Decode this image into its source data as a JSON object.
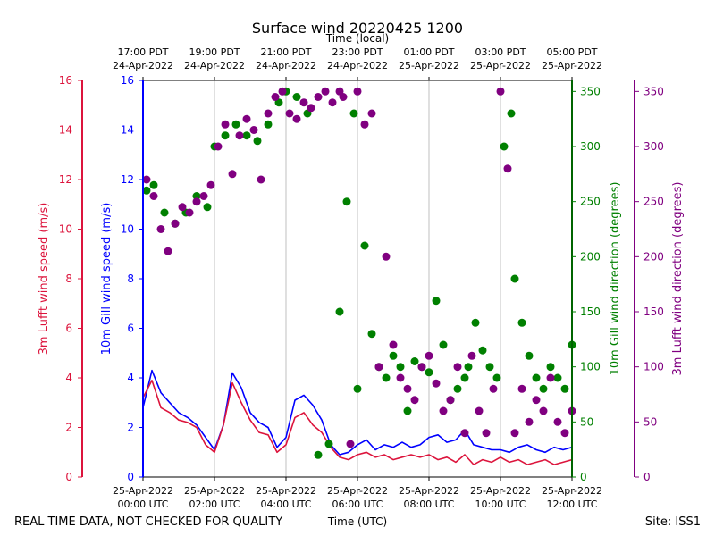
{
  "chart_data": {
    "type": "scatter",
    "title": "Surface wind 20220425 1200",
    "top_axis_label": "Time (local)",
    "top_ticks": [
      {
        "hour": 0,
        "line1": "17:00 PDT",
        "line2": "24-Apr-2022"
      },
      {
        "hour": 2,
        "line1": "19:00 PDT",
        "line2": "24-Apr-2022"
      },
      {
        "hour": 4,
        "line1": "21:00 PDT",
        "line2": "24-Apr-2022"
      },
      {
        "hour": 6,
        "line1": "23:00 PDT",
        "line2": "24-Apr-2022"
      },
      {
        "hour": 8,
        "line1": "01:00 PDT",
        "line2": "25-Apr-2022"
      },
      {
        "hour": 10,
        "line1": "03:00 PDT",
        "line2": "25-Apr-2022"
      },
      {
        "hour": 12,
        "line1": "05:00 PDT",
        "line2": "25-Apr-2022"
      }
    ],
    "bottom_ticks": [
      {
        "hour": 0,
        "line1": "25-Apr-2022",
        "line2": "00:00 UTC"
      },
      {
        "hour": 2,
        "line1": "25-Apr-2022",
        "line2": "02:00 UTC"
      },
      {
        "hour": 4,
        "line1": "25-Apr-2022",
        "line2": "04:00 UTC"
      },
      {
        "hour": 6,
        "line1": "25-Apr-2022",
        "line2": "06:00 UTC"
      },
      {
        "hour": 8,
        "line1": "25-Apr-2022",
        "line2": "08:00 UTC"
      },
      {
        "hour": 10,
        "line1": "25-Apr-2022",
        "line2": "10:00 UTC"
      },
      {
        "hour": 12,
        "line1": "25-Apr-2022",
        "line2": "12:00 UTC"
      }
    ],
    "xlabel": "Time (UTC)",
    "xlim": [
      0,
      12
    ],
    "axes": {
      "lufft_speed": {
        "label": "3m Lufft wind speed (m/s)",
        "color": "#dc143c",
        "ylim": [
          0,
          16
        ],
        "ticks": [
          "0",
          "2",
          "4",
          "6",
          "8",
          "10",
          "12",
          "14",
          "16"
        ]
      },
      "gill_speed": {
        "label": "10m Gill wind speed (m/s)",
        "color": "#0000ff",
        "ylim": [
          0,
          16
        ],
        "ticks": [
          "0",
          "2",
          "4",
          "6",
          "8",
          "10",
          "12",
          "14",
          "16"
        ]
      },
      "gill_dir": {
        "label": "10m Gill wind direction (degrees)",
        "color": "#008000",
        "ylim": [
          0,
          360
        ],
        "ticks": [
          "0",
          "50",
          "100",
          "150",
          "200",
          "250",
          "300",
          "350"
        ]
      },
      "lufft_dir": {
        "label": "3m Lufft wind direction (degrees)",
        "color": "#800080",
        "ylim": [
          0,
          360
        ],
        "ticks": [
          "0",
          "50",
          "100",
          "150",
          "200",
          "250",
          "300",
          "350"
        ]
      }
    },
    "series": [
      {
        "name": "10m Gill wind speed",
        "kind": "line",
        "axis": "gill_speed",
        "color": "#0000ff",
        "x": [
          0,
          0.25,
          0.5,
          0.75,
          1.0,
          1.25,
          1.5,
          1.75,
          2.0,
          2.25,
          2.5,
          2.75,
          3.0,
          3.25,
          3.5,
          3.75,
          4.0,
          4.25,
          4.5,
          4.75,
          5.0,
          5.25,
          5.5,
          5.75,
          6.0,
          6.25,
          6.5,
          6.75,
          7.0,
          7.25,
          7.5,
          7.75,
          8.0,
          8.25,
          8.5,
          8.75,
          9.0,
          9.25,
          9.5,
          9.75,
          10.0,
          10.25,
          10.5,
          10.75,
          11.0,
          11.25,
          11.5,
          11.75,
          12.0
        ],
        "y": [
          2.8,
          4.3,
          3.4,
          3.0,
          2.6,
          2.4,
          2.1,
          1.6,
          1.1,
          2.1,
          4.2,
          3.6,
          2.6,
          2.2,
          2.0,
          1.2,
          1.6,
          3.1,
          3.3,
          2.9,
          2.3,
          1.3,
          0.9,
          1.0,
          1.3,
          1.5,
          1.1,
          1.3,
          1.2,
          1.4,
          1.2,
          1.3,
          1.6,
          1.7,
          1.4,
          1.5,
          1.9,
          1.3,
          1.2,
          1.1,
          1.1,
          1.0,
          1.2,
          1.3,
          1.1,
          1.0,
          1.2,
          1.1,
          1.2
        ]
      },
      {
        "name": "3m Lufft wind speed",
        "kind": "line",
        "axis": "lufft_speed",
        "color": "#dc143c",
        "x": [
          0,
          0.25,
          0.5,
          0.75,
          1.0,
          1.25,
          1.5,
          1.75,
          2.0,
          2.25,
          2.5,
          2.75,
          3.0,
          3.25,
          3.5,
          3.75,
          4.0,
          4.25,
          4.5,
          4.75,
          5.0,
          5.25,
          5.5,
          5.75,
          6.0,
          6.25,
          6.5,
          6.75,
          7.0,
          7.25,
          7.5,
          7.75,
          8.0,
          8.25,
          8.5,
          8.75,
          9.0,
          9.25,
          9.5,
          9.75,
          10.0,
          10.25,
          10.5,
          10.75,
          11.0,
          11.25,
          11.5,
          11.75,
          12.0
        ],
        "y": [
          3.2,
          3.9,
          2.8,
          2.6,
          2.3,
          2.2,
          2.0,
          1.3,
          1.0,
          2.1,
          3.8,
          3.0,
          2.3,
          1.8,
          1.7,
          1.0,
          1.3,
          2.4,
          2.6,
          2.1,
          1.8,
          1.2,
          0.8,
          0.7,
          0.9,
          1.0,
          0.8,
          0.9,
          0.7,
          0.8,
          0.9,
          0.8,
          0.9,
          0.7,
          0.8,
          0.6,
          0.9,
          0.5,
          0.7,
          0.6,
          0.8,
          0.6,
          0.7,
          0.5,
          0.6,
          0.7,
          0.5,
          0.6,
          0.7
        ]
      },
      {
        "name": "10m Gill wind direction",
        "kind": "scatter",
        "axis": "gill_dir",
        "color": "#008000",
        "x": [
          0.1,
          0.3,
          0.6,
          0.9,
          1.2,
          1.5,
          1.8,
          2.0,
          2.3,
          2.6,
          2.9,
          3.2,
          3.5,
          3.8,
          4.0,
          4.3,
          4.6,
          4.9,
          5.2,
          5.5,
          5.7,
          5.9,
          6.0,
          6.2,
          6.4,
          6.6,
          6.8,
          7.0,
          7.2,
          7.4,
          7.6,
          7.8,
          8.0,
          8.2,
          8.4,
          8.6,
          8.8,
          9.0,
          9.1,
          9.3,
          9.5,
          9.7,
          9.9,
          10.1,
          10.3,
          10.4,
          10.6,
          10.8,
          11.0,
          11.2,
          11.4,
          11.6,
          11.8,
          12.0
        ],
        "y": [
          260,
          265,
          240,
          230,
          240,
          255,
          245,
          300,
          310,
          320,
          310,
          305,
          320,
          340,
          350,
          345,
          330,
          20,
          30,
          150,
          250,
          330,
          80,
          210,
          130,
          100,
          90,
          110,
          100,
          60,
          105,
          100,
          95,
          160,
          120,
          70,
          80,
          90,
          100,
          140,
          115,
          100,
          90,
          300,
          330,
          180,
          140,
          110,
          90,
          80,
          100,
          90,
          80,
          120
        ]
      },
      {
        "name": "3m Lufft wind direction",
        "kind": "scatter",
        "axis": "lufft_dir",
        "color": "#800080",
        "x": [
          0.1,
          0.3,
          0.5,
          0.7,
          0.9,
          1.1,
          1.3,
          1.5,
          1.7,
          1.9,
          2.1,
          2.3,
          2.5,
          2.7,
          2.9,
          3.1,
          3.3,
          3.5,
          3.7,
          3.9,
          4.1,
          4.3,
          4.5,
          4.7,
          4.9,
          5.1,
          5.3,
          5.5,
          5.6,
          5.8,
          6.0,
          6.2,
          6.4,
          6.6,
          6.8,
          7.0,
          7.2,
          7.4,
          7.6,
          7.8,
          8.0,
          8.2,
          8.4,
          8.6,
          8.8,
          9.0,
          9.2,
          9.4,
          9.6,
          9.8,
          10.0,
          10.2,
          10.4,
          10.6,
          10.8,
          11.0,
          11.2,
          11.4,
          11.6,
          11.8,
          12.0
        ],
        "y": [
          270,
          255,
          225,
          205,
          230,
          245,
          240,
          250,
          255,
          265,
          300,
          320,
          275,
          310,
          325,
          315,
          270,
          330,
          345,
          350,
          330,
          325,
          340,
          335,
          345,
          350,
          340,
          350,
          345,
          30,
          350,
          320,
          330,
          100,
          200,
          120,
          90,
          80,
          70,
          100,
          110,
          85,
          60,
          70,
          100,
          40,
          110,
          60,
          40,
          80,
          350,
          280,
          40,
          80,
          50,
          70,
          60,
          90,
          50,
          40,
          60
        ]
      }
    ],
    "annotations": {
      "footer_left": "REAL TIME DATA, NOT CHECKED FOR QUALITY",
      "footer_right": "Site: ISS1"
    }
  }
}
